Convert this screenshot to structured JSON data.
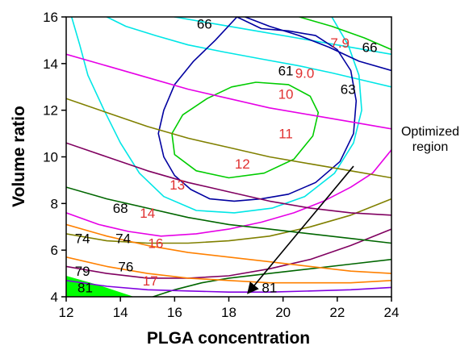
{
  "chart_data": {
    "type": "contour",
    "xlabel": "PLGA concentration",
    "ylabel": "Volume ratio",
    "xlim": [
      12,
      24
    ],
    "ylim": [
      4,
      16
    ],
    "x_ticks": [
      12,
      14,
      16,
      18,
      20,
      22,
      24
    ],
    "y_ticks": [
      4,
      6,
      8,
      10,
      12,
      14,
      16
    ],
    "grid": false,
    "colors": {
      "cyan": "#00e6e6",
      "blue": "#0000a0",
      "green": "#00cc00",
      "magenta": "#e600e6",
      "olive": "#808000",
      "purple": "#800060",
      "darkgreen": "#006600",
      "orange": "#ff8000",
      "violet": "#8000e0",
      "bright_green_fill": "#00ff00",
      "label_red": "#e03030",
      "label_black": "#000000"
    },
    "contours": [
      {
        "id": "c66",
        "color": "cyan",
        "points": [
          [
            12.2,
            16
          ],
          [
            12.5,
            14.8
          ],
          [
            12.8,
            13.5
          ],
          [
            13.4,
            12
          ],
          [
            14,
            10.6
          ],
          [
            14.7,
            9.3
          ],
          [
            15.6,
            8.3
          ],
          [
            16.8,
            7.7
          ],
          [
            18.2,
            7.6
          ],
          [
            19.6,
            7.8
          ],
          [
            20.8,
            8.3
          ],
          [
            21.9,
            9.3
          ],
          [
            22.6,
            10.6
          ],
          [
            22.9,
            12
          ],
          [
            22.8,
            13.5
          ],
          [
            22.4,
            14.8
          ],
          [
            21.8,
            16
          ]
        ]
      },
      {
        "id": "c66b",
        "color": "cyan",
        "points": [
          [
            13.5,
            16
          ],
          [
            14.2,
            15.6
          ],
          [
            15.3,
            15.2
          ],
          [
            16.5,
            14.8
          ],
          [
            17.8,
            14.5
          ],
          [
            19.2,
            14.2
          ],
          [
            20.6,
            13.9
          ],
          [
            21.8,
            13.6
          ],
          [
            22.9,
            13.3
          ],
          [
            24,
            13
          ]
        ]
      },
      {
        "id": "c66c",
        "color": "cyan",
        "points": [
          [
            16,
            16
          ],
          [
            17.5,
            15.7
          ],
          [
            19,
            15.4
          ],
          [
            20.5,
            15.1
          ],
          [
            22,
            14.8
          ],
          [
            24,
            14.4
          ]
        ]
      },
      {
        "id": "c63",
        "color": "blue",
        "points": [
          [
            18.3,
            16
          ],
          [
            17.5,
            15
          ],
          [
            16.7,
            14.1
          ],
          [
            16,
            13.1
          ],
          [
            15.6,
            12
          ],
          [
            15.4,
            11
          ],
          [
            15.6,
            10
          ],
          [
            16,
            9.2
          ],
          [
            16.6,
            8.6
          ],
          [
            17.3,
            8.2
          ],
          [
            18.2,
            8.1
          ],
          [
            19.2,
            8.2
          ],
          [
            20.2,
            8.4
          ],
          [
            21.2,
            8.9
          ],
          [
            22.1,
            9.8
          ],
          [
            22.6,
            11
          ],
          [
            22.7,
            12.4
          ],
          [
            22.5,
            13.7
          ],
          [
            22,
            14.6
          ],
          [
            21.2,
            15.2
          ],
          [
            20.2,
            15.4
          ],
          [
            19.2,
            15.5
          ],
          [
            18.3,
            16
          ]
        ]
      },
      {
        "id": "c63b",
        "color": "blue",
        "points": [
          [
            18.6,
            16
          ],
          [
            19.5,
            15.6
          ],
          [
            20.6,
            15.2
          ],
          [
            21.7,
            14.7
          ],
          [
            22.8,
            14.1
          ],
          [
            24,
            13.7
          ]
        ]
      },
      {
        "id": "c61",
        "color": "green",
        "points": [
          [
            19,
            13.2
          ],
          [
            20.2,
            13.1
          ],
          [
            21,
            12.6
          ],
          [
            21.3,
            11.9
          ],
          [
            21.1,
            10.9
          ],
          [
            20.4,
            9.9
          ],
          [
            19.3,
            9.3
          ],
          [
            18,
            9.1
          ],
          [
            16.8,
            9.4
          ],
          [
            16,
            10.1
          ],
          [
            15.9,
            11
          ],
          [
            16.3,
            11.8
          ],
          [
            17.2,
            12.5
          ],
          [
            18.1,
            13
          ],
          [
            19,
            13.2
          ]
        ]
      },
      {
        "id": "c79",
        "color": "green",
        "points": [
          [
            20.6,
            16
          ],
          [
            21.8,
            15.6
          ],
          [
            23,
            15.1
          ],
          [
            24,
            14.6
          ]
        ]
      },
      {
        "id": "c10",
        "color": "magenta",
        "points": [
          [
            12,
            14.4
          ],
          [
            13.5,
            13.9
          ],
          [
            15,
            13.4
          ],
          [
            16.5,
            12.9
          ],
          [
            18,
            12.5
          ],
          [
            19.5,
            12.1
          ],
          [
            21,
            11.8
          ],
          [
            22.5,
            11.5
          ],
          [
            24,
            11.2
          ]
        ]
      },
      {
        "id": "c11",
        "color": "magenta",
        "points": [
          [
            24,
            10.3
          ],
          [
            23.3,
            9.3
          ],
          [
            22.5,
            8.7
          ],
          [
            21.5,
            8.1
          ],
          [
            20.4,
            7.6
          ],
          [
            19.2,
            7.2
          ],
          [
            18,
            6.9
          ],
          [
            16.8,
            6.7
          ],
          [
            15.5,
            6.6
          ],
          [
            14.3,
            6.8
          ],
          [
            13.2,
            7.1
          ],
          [
            12,
            7.6
          ]
        ]
      },
      {
        "id": "c12",
        "color": "olive",
        "points": [
          [
            12,
            12.5
          ],
          [
            13.5,
            11.9
          ],
          [
            15,
            11.3
          ],
          [
            16.5,
            10.8
          ],
          [
            18,
            10.4
          ],
          [
            19.5,
            10
          ],
          [
            21,
            9.7
          ],
          [
            22.5,
            9.4
          ],
          [
            24,
            9.1
          ]
        ]
      },
      {
        "id": "c12b",
        "color": "olive",
        "points": [
          [
            12,
            6.7
          ],
          [
            13.5,
            6.4
          ],
          [
            15,
            6.3
          ],
          [
            16.5,
            6.3
          ],
          [
            18,
            6.4
          ],
          [
            19.5,
            6.6
          ],
          [
            21,
            7
          ],
          [
            22.5,
            7.5
          ],
          [
            24,
            8.2
          ]
        ]
      },
      {
        "id": "c13",
        "color": "purple",
        "points": [
          [
            12,
            10.6
          ],
          [
            13.5,
            10
          ],
          [
            15,
            9.4
          ],
          [
            16.5,
            8.9
          ],
          [
            18,
            8.5
          ],
          [
            19.5,
            8.1
          ],
          [
            21,
            7.8
          ],
          [
            22.5,
            7.6
          ],
          [
            24,
            7.5
          ]
        ]
      },
      {
        "id": "c13b",
        "color": "purple",
        "points": [
          [
            12,
            5.3
          ],
          [
            13.5,
            5
          ],
          [
            15,
            4.8
          ],
          [
            16.5,
            4.8
          ],
          [
            18,
            4.9
          ],
          [
            19.5,
            5.2
          ],
          [
            21,
            5.6
          ],
          [
            22.5,
            6.2
          ],
          [
            24,
            6.9
          ]
        ]
      },
      {
        "id": "c14",
        "color": "darkgreen",
        "points": [
          [
            12,
            8.7
          ],
          [
            13.5,
            8.2
          ],
          [
            15,
            7.8
          ],
          [
            16.5,
            7.4
          ],
          [
            18,
            7.1
          ],
          [
            19.5,
            6.9
          ],
          [
            21,
            6.7
          ],
          [
            22.5,
            6.5
          ],
          [
            24,
            6.3
          ]
        ]
      },
      {
        "id": "c14b",
        "color": "darkgreen",
        "points": [
          [
            15.2,
            4
          ],
          [
            16,
            4.3
          ],
          [
            17,
            4.6
          ],
          [
            18,
            4.8
          ],
          [
            19.5,
            5
          ],
          [
            21,
            5.2
          ],
          [
            22.5,
            5.4
          ],
          [
            24,
            5.6
          ]
        ]
      },
      {
        "id": "c16",
        "color": "orange",
        "points": [
          [
            12,
            7.1
          ],
          [
            13.5,
            6.6
          ],
          [
            15,
            6.2
          ],
          [
            16.5,
            5.9
          ],
          [
            18,
            5.7
          ],
          [
            19.5,
            5.5
          ],
          [
            21,
            5.3
          ],
          [
            22.5,
            5.1
          ],
          [
            24,
            5
          ]
        ]
      },
      {
        "id": "c17",
        "color": "orange",
        "points": [
          [
            12,
            5.7
          ],
          [
            13.5,
            5.3
          ],
          [
            15,
            5
          ],
          [
            16.5,
            4.8
          ],
          [
            18,
            4.7
          ],
          [
            19.5,
            4.6
          ],
          [
            21,
            4.6
          ],
          [
            22.5,
            4.6
          ],
          [
            24,
            4.7
          ]
        ]
      },
      {
        "id": "c81",
        "color": "violet",
        "points": [
          [
            12,
            4.7
          ],
          [
            13.5,
            4.45
          ],
          [
            15,
            4.3
          ],
          [
            16.5,
            4.25
          ],
          [
            18,
            4.2
          ],
          [
            19.5,
            4.2
          ],
          [
            21,
            4.25
          ],
          [
            22.5,
            4.3
          ],
          [
            24,
            4.4
          ]
        ]
      }
    ],
    "filled_region": {
      "color": "bright_green_fill",
      "points": [
        [
          12,
          4
        ],
        [
          12,
          4.9
        ],
        [
          13.2,
          4.5
        ],
        [
          14.5,
          4
        ]
      ]
    },
    "labels": [
      {
        "text": "66",
        "x": 17.1,
        "y": 15.7,
        "color": "label_black"
      },
      {
        "text": "66",
        "x": 23.2,
        "y": 14.7,
        "color": "label_black"
      },
      {
        "text": "7.9",
        "x": 22.1,
        "y": 14.9,
        "color": "label_red"
      },
      {
        "text": "9.0",
        "x": 20.8,
        "y": 13.6,
        "color": "label_red"
      },
      {
        "text": "61",
        "x": 20.1,
        "y": 13.7,
        "color": "label_black"
      },
      {
        "text": "63",
        "x": 22.4,
        "y": 12.9,
        "color": "label_black"
      },
      {
        "text": "10",
        "x": 20.1,
        "y": 12.7,
        "color": "label_red"
      },
      {
        "text": "11",
        "x": 20.1,
        "y": 11.0,
        "color": "label_red"
      },
      {
        "text": "12",
        "x": 18.5,
        "y": 9.7,
        "color": "label_red"
      },
      {
        "text": "13",
        "x": 16.1,
        "y": 8.8,
        "color": "label_red"
      },
      {
        "text": "14",
        "x": 15.0,
        "y": 7.6,
        "color": "label_red"
      },
      {
        "text": "68",
        "x": 14.0,
        "y": 7.8,
        "color": "label_black"
      },
      {
        "text": "74",
        "x": 12.6,
        "y": 6.5,
        "color": "label_black"
      },
      {
        "text": "74",
        "x": 14.1,
        "y": 6.5,
        "color": "label_black"
      },
      {
        "text": "16",
        "x": 15.3,
        "y": 6.3,
        "color": "label_red"
      },
      {
        "text": "76",
        "x": 14.2,
        "y": 5.3,
        "color": "label_black"
      },
      {
        "text": "79",
        "x": 12.6,
        "y": 5.1,
        "color": "label_black"
      },
      {
        "text": "17",
        "x": 15.1,
        "y": 4.7,
        "color": "label_red"
      },
      {
        "text": "81",
        "x": 12.7,
        "y": 4.4,
        "color": "label_black"
      },
      {
        "text": "81",
        "x": 19.5,
        "y": 4.4,
        "color": "label_black"
      }
    ],
    "annotation": {
      "lines": [
        "Optimized",
        "region"
      ],
      "arrow_from": [
        22.6,
        9.6
      ],
      "arrow_to": [
        18.7,
        4.15
      ]
    }
  }
}
